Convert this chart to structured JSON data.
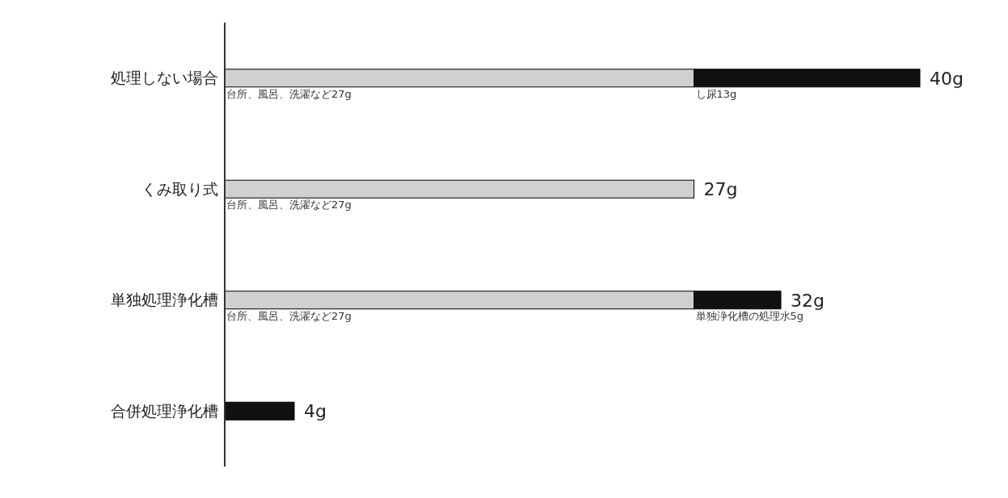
{
  "chart_data": {
    "type": "bar",
    "orientation": "horizontal",
    "stacked": true,
    "categories": [
      "処理しない場合",
      "くみ取り式",
      "単独処理浄化槽",
      "合併処理浄化槽"
    ],
    "series": [
      {
        "color": "#d0d0d0",
        "values": [
          27,
          27,
          27,
          null
        ],
        "value_labels": [
          "台所、風呂、洗濯など27g",
          "台所、風呂、洗濯など27g",
          "台所、風呂、洗濯など27g",
          null
        ]
      },
      {
        "color": "#111111",
        "values": [
          13,
          null,
          5,
          4
        ],
        "value_labels": [
          "し尿13g",
          null,
          "単独浄化槽の処理水5g",
          null
        ]
      }
    ],
    "totals": [
      "40g",
      "27g",
      "32g",
      "4g"
    ]
  }
}
